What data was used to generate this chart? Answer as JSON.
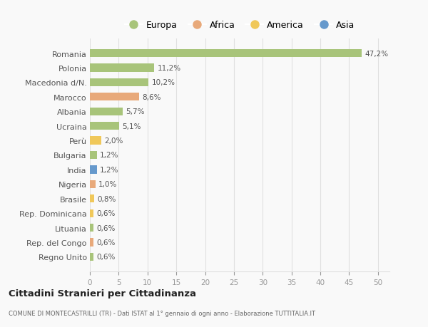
{
  "countries": [
    "Romania",
    "Polonia",
    "Macedonia d/N.",
    "Marocco",
    "Albania",
    "Ucraina",
    "Perù",
    "Bulgaria",
    "India",
    "Nigeria",
    "Brasile",
    "Rep. Dominicana",
    "Lituania",
    "Rep. del Congo",
    "Regno Unito"
  ],
  "values": [
    47.2,
    11.2,
    10.2,
    8.6,
    5.7,
    5.1,
    2.0,
    1.2,
    1.2,
    1.0,
    0.8,
    0.6,
    0.6,
    0.6,
    0.6
  ],
  "labels": [
    "47,2%",
    "11,2%",
    "10,2%",
    "8,6%",
    "5,7%",
    "5,1%",
    "2,0%",
    "1,2%",
    "1,2%",
    "1,0%",
    "0,8%",
    "0,6%",
    "0,6%",
    "0,6%",
    "0,6%"
  ],
  "continents": [
    "Europa",
    "Europa",
    "Europa",
    "Africa",
    "Europa",
    "Europa",
    "America",
    "Europa",
    "Asia",
    "Africa",
    "America",
    "America",
    "Europa",
    "Africa",
    "Europa"
  ],
  "colors": {
    "Europa": "#a8c47a",
    "Africa": "#e8a97a",
    "America": "#f0c85a",
    "Asia": "#6699cc"
  },
  "background_color": "#f9f9f9",
  "title": "Cittadini Stranieri per Cittadinanza",
  "subtitle": "COMUNE DI MONTECASTRILLI (TR) - Dati ISTAT al 1° gennaio di ogni anno - Elaborazione TUTTITALIA.IT",
  "xlim": [
    0,
    52
  ],
  "xticks": [
    0,
    5,
    10,
    15,
    20,
    25,
    30,
    35,
    40,
    45,
    50
  ],
  "grid_color": "#e0e0e0",
  "bar_height": 0.55
}
